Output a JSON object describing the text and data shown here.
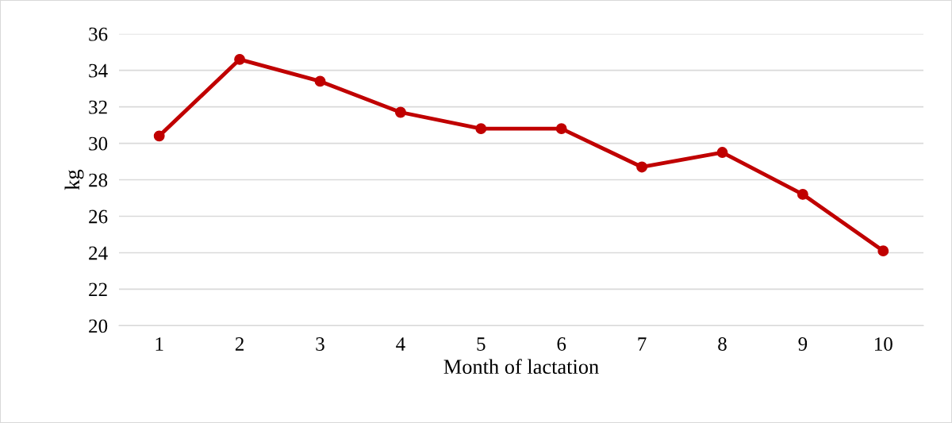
{
  "chart_data": {
    "type": "line",
    "xlabel": "Month of lactation",
    "ylabel": "kg",
    "categories": [
      "1",
      "2",
      "3",
      "4",
      "5",
      "6",
      "7",
      "8",
      "9",
      "10"
    ],
    "series": [
      {
        "color": "#c00000",
        "values": [
          30.4,
          34.6,
          33.4,
          31.7,
          30.8,
          30.8,
          28.7,
          29.5,
          27.2,
          24.1
        ]
      }
    ],
    "ylim": [
      20,
      36
    ],
    "yticks": [
      20,
      22,
      24,
      26,
      28,
      30,
      32,
      34,
      36
    ],
    "grid": "y",
    "marker": "circle",
    "line_style": "solid",
    "legend": false
  }
}
